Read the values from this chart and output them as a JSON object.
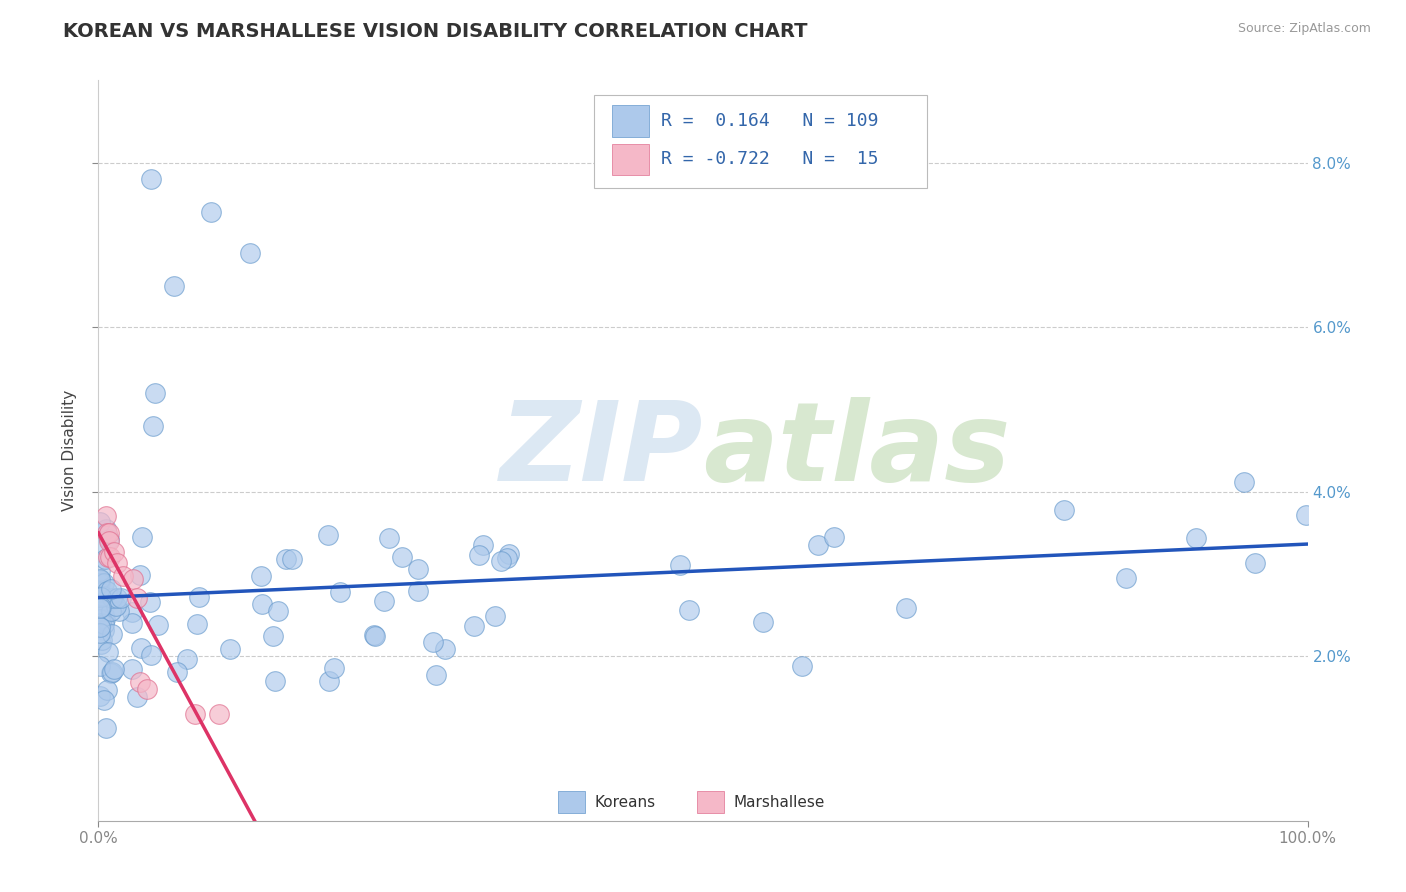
{
  "title": "KOREAN VS MARSHALLESE VISION DISABILITY CORRELATION CHART",
  "source": "Source: ZipAtlas.com",
  "ylabel": "Vision Disability",
  "xlim": [
    0.0,
    1.0
  ],
  "ylim": [
    0.0,
    0.09
  ],
  "xtick_labels": [
    "0.0%",
    "100.0%"
  ],
  "ytick_labels": [
    "2.0%",
    "4.0%",
    "6.0%",
    "8.0%"
  ],
  "ytick_vals": [
    0.02,
    0.04,
    0.06,
    0.08
  ],
  "korean_color": "#adc9eb",
  "korean_edge": "#6699cc",
  "marshallese_color": "#f5b8c8",
  "marshallese_edge": "#e07090",
  "trend_korean_color": "#2255bb",
  "trend_marshallese_color": "#dd3366",
  "legend_korean_R": "0.164",
  "legend_korean_N": "109",
  "legend_marshallese_R": "-0.722",
  "legend_marshallese_N": "15",
  "background_color": "#ffffff",
  "grid_color": "#cccccc",
  "watermark_color": "#dce8f3",
  "title_fontsize": 14,
  "axis_label_fontsize": 11,
  "tick_fontsize": 11,
  "legend_fontsize": 13
}
